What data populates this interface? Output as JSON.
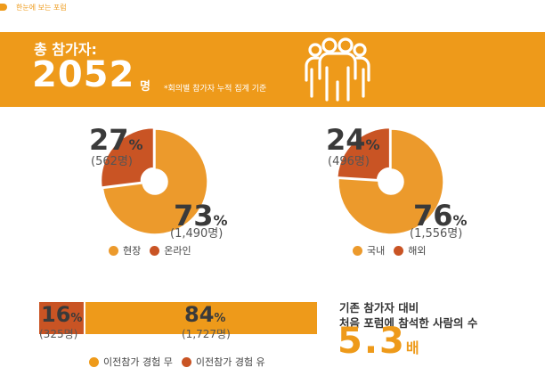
{
  "header": {
    "title": "한눈에 보는 포럼"
  },
  "banner": {
    "label": "총 참가자:",
    "total": "2052",
    "unit": "명",
    "note": "*회의별 참가자 누적 집계 기준",
    "icon": "people-group-icon"
  },
  "colors": {
    "accent": "#EE9A1A",
    "light": "#EC9A2C",
    "dark": "#C95424"
  },
  "chart_data": [
    {
      "type": "pie",
      "labels": [
        "현장",
        "온라인"
      ],
      "values": [
        73,
        27
      ],
      "counts": [
        "(1,490명)",
        "(562명)"
      ],
      "unit": "%",
      "legend": "bottom"
    },
    {
      "type": "pie",
      "labels": [
        "국내",
        "해외"
      ],
      "values": [
        76,
        24
      ],
      "counts": [
        "(1,556명)",
        "(496명)"
      ],
      "unit": "%",
      "legend": "bottom"
    },
    {
      "type": "bar",
      "labels": [
        "이전참가 경험 무",
        "이전참가 경험 유"
      ],
      "values": [
        84,
        16
      ],
      "counts": [
        "(1,727명)",
        "(325명)"
      ],
      "unit": "%",
      "legend": "bottom"
    }
  ],
  "stat": {
    "line1": "기존 참가자 대비",
    "line2": "처음 포럼에 참석한 사람의 수",
    "value": "5.3",
    "unit": "배"
  }
}
